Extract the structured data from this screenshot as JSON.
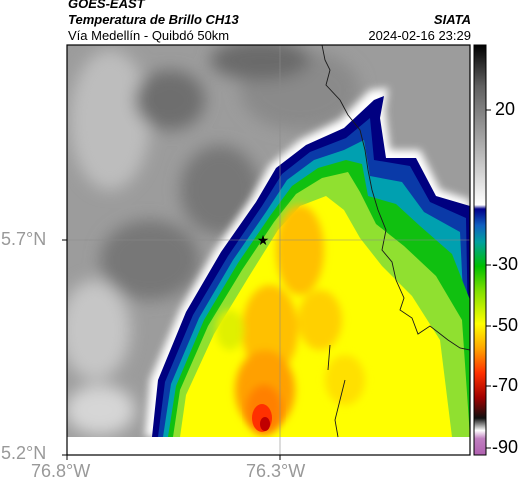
{
  "header": {
    "satellite": "GOES-EAST",
    "product": "Temperatura de Brillo CH13",
    "route": "Vía Medellín - Quibdó 50km",
    "org": "SIATA",
    "datetime": "2024-02-16 23:29"
  },
  "axes": {
    "lat_labels": [
      "5.7°N",
      "5.2°N"
    ],
    "lon_labels": [
      "76.8°W",
      "76.3°W"
    ]
  },
  "colorbar": {
    "tick_labels": [
      "20",
      "-30",
      "-50",
      "-70",
      "-90"
    ],
    "colors_cold_to_warm": [
      "#b060b0",
      "#ffffff",
      "#000000",
      "#b00000",
      "#ff3000",
      "#ffa500",
      "#ffff00",
      "#90e000",
      "#00c000",
      "#00a0a0",
      "#1060c0",
      "#00008a",
      "#ffffff",
      "#d0d0d0",
      "#909090",
      "#505050",
      "#000000"
    ]
  },
  "marker": {
    "symbol": "★"
  }
}
